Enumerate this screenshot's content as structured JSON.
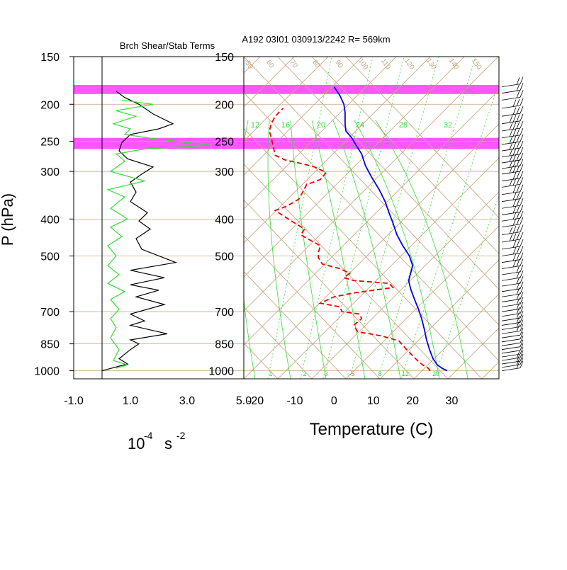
{
  "figure": {
    "left_title": "Brch Shear/Stab Terms",
    "right_title": "A192 03I01 030913/2242 R= 569km",
    "ylabel": "P (hPa)",
    "left_xlabel_base": "10",
    "left_xlabel_exp": "-4",
    "left_xlabel_unit": "s",
    "left_xlabel_exp2": "-2",
    "right_xlabel": "Temperature (C)"
  },
  "colors": {
    "brown": "#c8a882",
    "magenta": "#ff55ff",
    "green": "#33dd33",
    "black": "#000000",
    "red": "#ee0000",
    "blue": "#0000ee"
  },
  "chart_data": [
    {
      "type": "line",
      "title": "Brch Shear/Stab Terms",
      "ylabel": "P (hPa)",
      "xlabel": "10-4 s -2",
      "y_scale": "log",
      "y_ticks": [
        150,
        200,
        250,
        300,
        400,
        500,
        700,
        850,
        1000
      ],
      "y_tick_labels": [
        "150",
        "200",
        "250",
        "300",
        "400",
        "500",
        "700",
        "850",
        "1000"
      ],
      "xlim": [
        -1.0,
        5.0
      ],
      "x_ticks": [
        -1.0,
        1.0,
        3.0,
        5.0
      ],
      "x_tick_labels": [
        "-1.0",
        "1.0",
        "3.0",
        "5.0"
      ],
      "highlight_bands_hPa": [
        [
          178,
          188
        ],
        [
          245,
          262
        ]
      ],
      "series": [
        {
          "color": "black",
          "points": [
            [
              0.5,
              185
            ],
            [
              0.8,
              192
            ],
            [
              1.3,
              200
            ],
            [
              1.8,
              212
            ],
            [
              2.5,
              225
            ],
            [
              2.0,
              232
            ],
            [
              1.0,
              240
            ],
            [
              0.7,
              252
            ],
            [
              0.6,
              265
            ],
            [
              0.9,
              278
            ],
            [
              1.8,
              292
            ],
            [
              1.4,
              305
            ],
            [
              1.0,
              320
            ],
            [
              1.2,
              340
            ],
            [
              1.0,
              360
            ],
            [
              1.6,
              385
            ],
            [
              1.3,
              405
            ],
            [
              1.7,
              425
            ],
            [
              1.2,
              450
            ],
            [
              1.4,
              480
            ],
            [
              2.6,
              520
            ],
            [
              1.0,
              545
            ],
            [
              2.2,
              570
            ],
            [
              1.0,
              595
            ],
            [
              2.0,
              615
            ],
            [
              1.2,
              640
            ],
            [
              2.2,
              670
            ],
            [
              1.0,
              710
            ],
            [
              1.5,
              740
            ],
            [
              1.0,
              760
            ],
            [
              2.3,
              800
            ],
            [
              1.0,
              830
            ],
            [
              1.3,
              850
            ],
            [
              1.0,
              880
            ],
            [
              0.6,
              930
            ],
            [
              0.9,
              960
            ],
            [
              0.0,
              1000
            ]
          ]
        },
        {
          "color": "green",
          "points": [
            [
              0.7,
              195
            ],
            [
              1.8,
              200
            ],
            [
              0.5,
              208
            ],
            [
              1.2,
              215
            ],
            [
              0.4,
              225
            ],
            [
              1.0,
              232
            ],
            [
              0.8,
              240
            ],
            [
              1.8,
              246
            ],
            [
              3.8,
              256
            ],
            [
              1.5,
              262
            ],
            [
              0.5,
              270
            ],
            [
              0.8,
              282
            ],
            [
              0.3,
              300
            ],
            [
              1.5,
              318
            ],
            [
              0.2,
              335
            ],
            [
              0.8,
              350
            ],
            [
              0.3,
              375
            ],
            [
              0.9,
              400
            ],
            [
              0.3,
              420
            ],
            [
              0.7,
              445
            ],
            [
              0.2,
              470
            ],
            [
              0.5,
              500
            ],
            [
              0.2,
              530
            ],
            [
              0.6,
              560
            ],
            [
              0.2,
              590
            ],
            [
              0.8,
              620
            ],
            [
              0.3,
              650
            ],
            [
              0.6,
              690
            ],
            [
              0.3,
              730
            ],
            [
              0.5,
              770
            ],
            [
              0.3,
              820
            ],
            [
              0.6,
              880
            ],
            [
              0.4,
              940
            ],
            [
              0.9,
              965
            ],
            [
              0.5,
              985
            ]
          ]
        }
      ]
    },
    {
      "type": "line",
      "title": "A192 03I01 030913/2242 R= 569km",
      "xlabel": "Temperature (C)",
      "y_scale": "log",
      "y_ticks": [
        150,
        200,
        250,
        300,
        400,
        500,
        700,
        850,
        1000
      ],
      "y_tick_labels": [
        "150",
        "200",
        "250",
        "300",
        "400",
        "500",
        "700",
        "850",
        "1000"
      ],
      "xlim": [
        -23,
        42
      ],
      "x_ticks": [
        -20,
        -10,
        0,
        10,
        20,
        30
      ],
      "x_tick_labels": [
        "-20",
        "-10",
        "0",
        "10",
        "20",
        "30"
      ],
      "highlight_bands_hPa": [
        [
          178,
          188
        ],
        [
          245,
          262
        ]
      ],
      "mixing_ratio_labels_top": [
        "12",
        "16",
        "20",
        "24",
        "28",
        "32"
      ],
      "mixing_ratio_labels_bottom": [
        "1",
        "2",
        "3",
        "5",
        "8",
        "12",
        "20"
      ],
      "isotherm_labels": [
        "-50",
        "60",
        "70",
        "80",
        "90",
        "100",
        "110",
        "120",
        "130",
        "140",
        "150"
      ],
      "series": [
        {
          "name": "Temperature",
          "color": "blue",
          "style": "solid",
          "points": [
            [
              28.8,
              1000
            ],
            [
              27.5,
              985
            ],
            [
              26.3,
              965
            ],
            [
              25.2,
              930
            ],
            [
              24.3,
              880
            ],
            [
              23.5,
              825
            ],
            [
              23.0,
              780
            ],
            [
              22.3,
              730
            ],
            [
              21.5,
              690
            ],
            [
              20.5,
              650
            ],
            [
              19.5,
              610
            ],
            [
              19.0,
              580
            ],
            [
              19.5,
              555
            ],
            [
              20.0,
              530
            ],
            [
              19.2,
              500
            ],
            [
              17.5,
              470
            ],
            [
              16.0,
              440
            ],
            [
              15.0,
              410
            ],
            [
              14.0,
              385
            ],
            [
              13.0,
              360
            ],
            [
              11.5,
              335
            ],
            [
              9.5,
              310
            ],
            [
              8.0,
              290
            ],
            [
              7.0,
              270
            ],
            [
              5.5,
              255
            ],
            [
              4.5,
              245
            ],
            [
              3.0,
              235
            ],
            [
              2.8,
              225
            ],
            [
              2.8,
              210
            ],
            [
              2.5,
              200
            ],
            [
              1.5,
              190
            ],
            [
              0.0,
              180
            ]
          ]
        },
        {
          "name": "Dewpoint",
          "color": "red",
          "style": "dashed",
          "points": [
            [
              24.5,
              1000
            ],
            [
              24.0,
              985
            ],
            [
              22.5,
              965
            ],
            [
              21.0,
              935
            ],
            [
              18.5,
              880
            ],
            [
              16.5,
              835
            ],
            [
              12.0,
              810
            ],
            [
              6.0,
              790
            ],
            [
              5.0,
              760
            ],
            [
              7.0,
              730
            ],
            [
              6.5,
              710
            ],
            [
              2.0,
              700
            ],
            [
              1.5,
              680
            ],
            [
              -3.5,
              665
            ],
            [
              0.0,
              640
            ],
            [
              5.0,
              625
            ],
            [
              15.0,
              605
            ],
            [
              14.0,
              590
            ],
            [
              5.0,
              580
            ],
            [
              2.5,
              570
            ],
            [
              4.0,
              555
            ],
            [
              1.5,
              540
            ],
            [
              -3.0,
              525
            ],
            [
              -4.0,
              505
            ],
            [
              -4.0,
              490
            ],
            [
              -3.5,
              470
            ],
            [
              -6.0,
              455
            ],
            [
              -8.5,
              440
            ],
            [
              -7.5,
              425
            ],
            [
              -10.0,
              410
            ],
            [
              -12.5,
              395
            ],
            [
              -15.0,
              380
            ],
            [
              -12.0,
              370
            ],
            [
              -9.0,
              355
            ],
            [
              -8.0,
              340
            ],
            [
              -7.0,
              325
            ],
            [
              -3.5,
              315
            ],
            [
              -2.0,
              302
            ],
            [
              -5.0,
              292
            ],
            [
              -9.0,
              285
            ],
            [
              -12.5,
              280
            ],
            [
              -15.0,
              272
            ],
            [
              -15.5,
              258
            ],
            [
              -16.0,
              245
            ],
            [
              -16.5,
              235
            ],
            [
              -16.0,
              225
            ],
            [
              -15.0,
              215
            ],
            [
              -13.0,
              205
            ]
          ]
        }
      ]
    }
  ],
  "wind_barbs": {
    "levels_hPa": [
      180,
      187,
      195,
      205,
      215,
      225,
      235,
      245,
      255,
      265,
      275,
      285,
      295,
      305,
      318,
      330,
      345,
      360,
      375,
      390,
      405,
      420,
      440,
      460,
      480,
      500,
      520,
      540,
      560,
      580,
      600,
      620,
      640,
      660,
      680,
      700,
      720,
      740,
      760,
      780,
      800,
      820,
      840,
      860,
      880,
      900,
      920,
      940,
      960,
      980,
      1000
    ],
    "speeds_kt": [
      15,
      20,
      20,
      25,
      30,
      35,
      35,
      40,
      35,
      35,
      40,
      40,
      35,
      35,
      30,
      35,
      30,
      30,
      25,
      25,
      30,
      30,
      35,
      35,
      30,
      30,
      25,
      25,
      20,
      20,
      20,
      15,
      15,
      20,
      20,
      15,
      15,
      15,
      20,
      15,
      15,
      10,
      10,
      10,
      10,
      10,
      10,
      15,
      15,
      15,
      20
    ]
  }
}
